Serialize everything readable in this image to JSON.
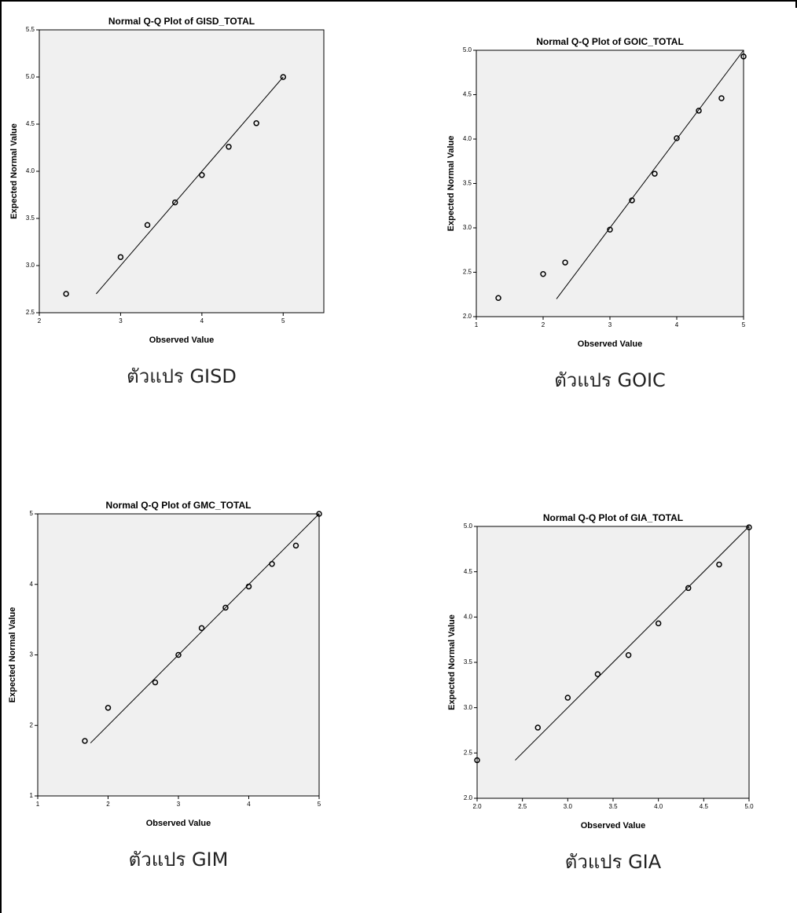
{
  "chart_data": [
    {
      "type": "scatter",
      "title": "Normal Q-Q Plot of GISD_TOTAL",
      "x_label": "Observed Value",
      "y_label": "Expected Normal Value",
      "caption": "ตัวแปร GISD",
      "x": [
        2.33,
        3,
        3.33,
        3.67,
        4,
        4.33,
        4.67,
        5
      ],
      "values": [
        2.7,
        3.09,
        3.43,
        3.67,
        3.96,
        4.26,
        4.51,
        5.0
      ],
      "reference_line": {
        "x": [
          2.7,
          5
        ],
        "y": [
          2.7,
          5
        ]
      },
      "xlim": [
        2,
        5.5
      ],
      "xticks": [
        2,
        3,
        4,
        5
      ],
      "ylim": [
        2.5,
        5.5
      ],
      "yticks": [
        2.5,
        {
          "value": 3,
          "label": "3.0"
        },
        3.5,
        {
          "value": 4,
          "label": "4.0"
        },
        4.5,
        {
          "value": 5,
          "label": "5.0"
        },
        5.5
      ]
    },
    {
      "type": "scatter",
      "title": "Normal Q-Q Plot of GOIC_TOTAL",
      "x_label": "Observed Value",
      "y_label": "Expected Normal Value",
      "caption": "ตัวแปร GOIC",
      "x": [
        1.33,
        2,
        2.33,
        3,
        3.33,
        3.67,
        4,
        4.33,
        4.67,
        5
      ],
      "values": [
        2.21,
        2.48,
        2.61,
        2.98,
        3.31,
        3.61,
        4.01,
        4.32,
        4.46,
        4.93
      ],
      "reference_line": {
        "x": [
          2.2,
          5
        ],
        "y": [
          2.2,
          5
        ]
      },
      "xlim": [
        1,
        5
      ],
      "xticks": [
        1,
        2,
        3,
        4,
        5
      ],
      "ylim": [
        2,
        5
      ],
      "yticks": [
        {
          "value": 2,
          "label": "2.0"
        },
        2.5,
        {
          "value": 3,
          "label": "3.0"
        },
        3.5,
        {
          "value": 4,
          "label": "4.0"
        },
        4.5,
        {
          "value": 5,
          "label": "5.0"
        }
      ]
    },
    {
      "type": "scatter",
      "title": "Normal Q-Q Plot of GMC_TOTAL",
      "x_label": "Observed Value",
      "y_label": "Expected Normal Value",
      "caption": "ตัวแปร GIM",
      "x": [
        1.67,
        2,
        2.67,
        3,
        3.33,
        3.67,
        4,
        4.33,
        4.67,
        5
      ],
      "values": [
        1.78,
        2.25,
        2.61,
        3.0,
        3.38,
        3.67,
        3.97,
        4.29,
        4.55,
        5.0
      ],
      "reference_line": {
        "x": [
          1.75,
          5
        ],
        "y": [
          1.75,
          5
        ]
      },
      "xlim": [
        1,
        5
      ],
      "xticks": [
        1,
        2,
        3,
        4,
        5
      ],
      "ylim": [
        1,
        5
      ],
      "yticks": [
        1,
        2,
        3,
        4,
        5
      ]
    },
    {
      "type": "scatter",
      "title": "Normal Q-Q Plot of GIA_TOTAL",
      "x_label": "Observed Value",
      "y_label": "Expected Normal Value",
      "caption": "ตัวแปร GIA",
      "x": [
        2,
        2.67,
        3,
        3.33,
        3.67,
        4,
        4.33,
        4.67,
        5
      ],
      "values": [
        2.42,
        2.78,
        3.11,
        3.37,
        3.58,
        3.93,
        4.32,
        4.58,
        4.99
      ],
      "reference_line": {
        "x": [
          2.42,
          5
        ],
        "y": [
          2.42,
          5
        ]
      },
      "xlim": [
        2,
        5
      ],
      "xticks": [
        {
          "value": 2,
          "label": "2.0"
        },
        2.5,
        {
          "value": 3,
          "label": "3.0"
        },
        3.5,
        {
          "value": 4,
          "label": "4.0"
        },
        4.5,
        {
          "value": 5,
          "label": "5.0"
        }
      ],
      "ylim": [
        2,
        5
      ],
      "yticks": [
        {
          "value": 2,
          "label": "2.0"
        },
        2.5,
        {
          "value": 3,
          "label": "3.0"
        },
        3.5,
        {
          "value": 4,
          "label": "4.0"
        },
        4.5,
        {
          "value": 5,
          "label": "5.0"
        }
      ]
    }
  ]
}
